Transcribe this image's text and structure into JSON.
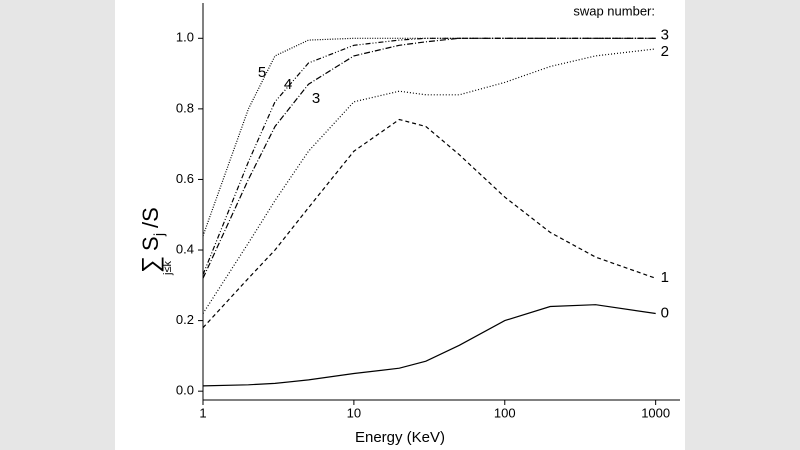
{
  "chart_data": {
    "type": "line",
    "x_label": "Energy (KeV)",
    "y_label": {
      "sum": "∑",
      "sum_sub": "j≤k",
      "main": "S",
      "main_sub": "j",
      "tail": "/S"
    },
    "legend_title": "swap number:",
    "log_x": true,
    "xlim": [
      1,
      1450
    ],
    "ylim": [
      -0.025,
      1.1
    ],
    "xticks": [
      1,
      10,
      100,
      1000
    ],
    "yticks": [
      {
        "value": 0,
        "label": "0.0"
      },
      0.2,
      0.4,
      0.6,
      0.8,
      {
        "value": 1,
        "label": "1.0"
      }
    ],
    "x": [
      1,
      2,
      3,
      5,
      10,
      20,
      30,
      50,
      100,
      200,
      400,
      1000
    ],
    "series": [
      {
        "name": "0",
        "color": "#000000",
        "dash": "none",
        "values": [
          0.015,
          0.018,
          0.022,
          0.032,
          0.05,
          0.065,
          0.085,
          0.13,
          0.2,
          0.24,
          0.245,
          0.22
        ]
      },
      {
        "name": "1",
        "color": "#000000",
        "dash": "4,3",
        "values": [
          0.18,
          0.32,
          0.4,
          0.52,
          0.68,
          0.77,
          0.75,
          0.67,
          0.55,
          0.45,
          0.38,
          0.32
        ]
      },
      {
        "name": "2",
        "color": "#000000",
        "dash": "1,2",
        "values": [
          0.22,
          0.42,
          0.54,
          0.68,
          0.82,
          0.85,
          0.84,
          0.84,
          0.875,
          0.92,
          0.95,
          0.97
        ]
      },
      {
        "name": "3",
        "color": "#000000",
        "dash": "6,2,1,2",
        "values": [
          0.32,
          0.6,
          0.75,
          0.87,
          0.95,
          0.98,
          0.99,
          1.0,
          1.0,
          1.0,
          1.0,
          1.0
        ]
      },
      {
        "name": "4",
        "color": "#000000",
        "dash": "5,2,1,2,1,2",
        "values": [
          0.33,
          0.65,
          0.82,
          0.93,
          0.98,
          0.995,
          1.0,
          1.0,
          1.0,
          1.0,
          1.0,
          1.0
        ]
      },
      {
        "name": "5",
        "color": "#000000",
        "dash": "1,1.5",
        "values": [
          0.44,
          0.8,
          0.95,
          0.995,
          1.0,
          1.0,
          1.0,
          1.0,
          1.0,
          1.0,
          1.0,
          1.0
        ]
      }
    ]
  }
}
